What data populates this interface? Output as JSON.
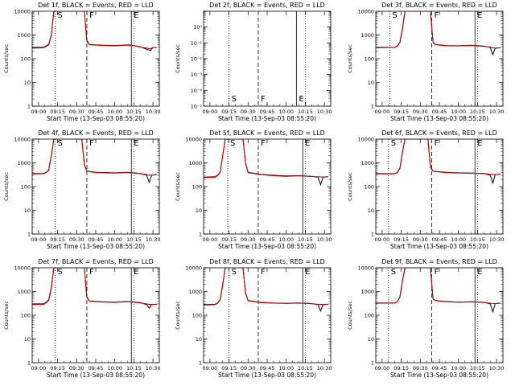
{
  "xlabel": "Start Time (13-Sep-03 08:55:20)",
  "ylabel": "Counts/sec",
  "x_tick_labels": [
    "09:00",
    "09:15",
    "09:30",
    "09:45",
    "10:00",
    "10:15",
    "10:30"
  ],
  "y_tick_labels": [
    "1",
    "10",
    "100",
    "1000",
    "10000"
  ],
  "y_tick_labels_small": [
    "10⁻⁵",
    "10⁻⁴",
    "10⁻³",
    "10⁻²",
    "10⁻¹",
    "10⁰"
  ],
  "colors": {
    "events": "#000000",
    "lld": "#cc0000"
  },
  "chart_data": [
    {
      "type": "line",
      "title": "Det 1f, BLACK = Events, RED = LLD",
      "yscale": "log",
      "ylim": [
        1,
        10000
      ],
      "markers": [
        "S",
        "F",
        "E"
      ],
      "series": [
        {
          "name": "Events",
          "x": [
            "08:55",
            "09:04",
            "09:06",
            "09:08",
            "09:10",
            "09:12",
            "09:14",
            "09:36",
            "09:38",
            "09:40",
            "09:50",
            "10:00",
            "10:10",
            "10:15",
            "10:20",
            "10:25",
            "10:28",
            "10:30",
            "10:33"
          ],
          "values": [
            300,
            300,
            350,
            400,
            1000,
            10000,
            10000,
            10000,
            600,
            400,
            370,
            360,
            380,
            360,
            320,
            250,
            220,
            300,
            290
          ]
        },
        {
          "name": "LLD",
          "x": [
            "08:55",
            "09:04",
            "09:06",
            "09:08",
            "09:10",
            "09:12",
            "09:14",
            "09:36",
            "09:38",
            "09:40",
            "09:50",
            "10:00",
            "10:10",
            "10:15",
            "10:20",
            "10:25",
            "10:28",
            "10:30",
            "10:33"
          ],
          "values": [
            280,
            290,
            330,
            380,
            900,
            10000,
            10000,
            10000,
            550,
            390,
            360,
            350,
            370,
            355,
            310,
            280,
            260,
            300,
            290
          ]
        }
      ]
    },
    {
      "type": "line",
      "title": "Det 2f, BLACK = Events, RED = LLD",
      "yscale": "log",
      "ylim": [
        1e-06,
        1
      ],
      "markers": [
        "S",
        "F",
        "E"
      ],
      "series": []
    },
    {
      "type": "line",
      "title": "Det 3f, BLACK = Events, RED = LLD",
      "yscale": "log",
      "ylim": [
        1,
        10000
      ],
      "markers": [
        "S",
        "F",
        "E"
      ],
      "series": [
        {
          "name": "Events",
          "x": [
            "08:55",
            "09:10",
            "09:12",
            "09:14",
            "09:16",
            "09:18",
            "09:20",
            "09:38",
            "09:40",
            "09:42",
            "09:50",
            "10:00",
            "10:10",
            "10:20",
            "10:25",
            "10:27",
            "10:29",
            "10:33"
          ],
          "values": [
            300,
            300,
            350,
            500,
            2000,
            10000,
            10000,
            10000,
            500,
            400,
            360,
            350,
            370,
            340,
            300,
            150,
            280,
            290
          ]
        },
        {
          "name": "LLD",
          "x": [
            "08:55",
            "09:10",
            "09:12",
            "09:14",
            "09:16",
            "09:18",
            "09:20",
            "09:38",
            "09:40",
            "09:42",
            "09:50",
            "10:00",
            "10:10",
            "10:20",
            "10:25",
            "10:27",
            "10:29",
            "10:33"
          ],
          "values": [
            290,
            300,
            340,
            480,
            1800,
            10000,
            10000,
            10000,
            480,
            390,
            350,
            345,
            360,
            330,
            310,
            290,
            280,
            290
          ]
        }
      ]
    },
    {
      "type": "line",
      "title": "Det 4f, BLACK = Events, RED = LLD",
      "yscale": "log",
      "ylim": [
        1,
        10000
      ],
      "markers": [
        "S",
        "F",
        "E"
      ],
      "series": [
        {
          "name": "Events",
          "x": [
            "08:55",
            "09:04",
            "09:06",
            "09:08",
            "09:10",
            "09:12",
            "09:14",
            "09:34",
            "09:36",
            "09:38",
            "09:45",
            "10:00",
            "10:10",
            "10:20",
            "10:25",
            "10:27",
            "10:29",
            "10:33"
          ],
          "values": [
            350,
            360,
            400,
            500,
            2000,
            10000,
            10000,
            10000,
            900,
            450,
            400,
            380,
            400,
            360,
            300,
            150,
            300,
            320
          ]
        },
        {
          "name": "LLD",
          "x": [
            "08:55",
            "09:04",
            "09:06",
            "09:08",
            "09:10",
            "09:12",
            "09:14",
            "09:34",
            "09:36",
            "09:38",
            "09:45",
            "10:00",
            "10:10",
            "10:20",
            "10:25",
            "10:27",
            "10:29",
            "10:33"
          ],
          "values": [
            340,
            350,
            390,
            480,
            1900,
            10000,
            10000,
            10000,
            850,
            440,
            390,
            370,
            390,
            350,
            320,
            300,
            310,
            320
          ]
        }
      ]
    },
    {
      "type": "line",
      "title": "Det 5f, BLACK = Events, RED = LLD",
      "yscale": "log",
      "ylim": [
        1,
        10000
      ],
      "markers": [
        "S",
        "F",
        "E"
      ],
      "series": [
        {
          "name": "Events",
          "x": [
            "08:55",
            "09:04",
            "09:06",
            "09:08",
            "09:10",
            "09:12",
            "09:14",
            "09:26",
            "09:28",
            "09:30",
            "09:40",
            "09:50",
            "10:00",
            "10:10",
            "10:20",
            "10:25",
            "10:27",
            "10:29",
            "10:33"
          ],
          "values": [
            250,
            260,
            300,
            400,
            2000,
            10000,
            10000,
            10000,
            1000,
            400,
            330,
            300,
            280,
            290,
            270,
            250,
            120,
            250,
            260
          ]
        },
        {
          "name": "LLD",
          "x": [
            "08:55",
            "09:04",
            "09:06",
            "09:08",
            "09:10",
            "09:12",
            "09:14",
            "09:26",
            "09:28",
            "09:30",
            "09:40",
            "09:50",
            "10:00",
            "10:10",
            "10:20",
            "10:25",
            "10:27",
            "10:29",
            "10:33"
          ],
          "values": [
            240,
            250,
            290,
            390,
            1900,
            10000,
            10000,
            10000,
            950,
            390,
            320,
            290,
            270,
            285,
            265,
            260,
            255,
            255,
            260
          ]
        }
      ]
    },
    {
      "type": "line",
      "title": "Det 6f, BLACK = Events, RED = LLD",
      "yscale": "log",
      "ylim": [
        1,
        10000
      ],
      "markers": [
        "S",
        "F",
        "E"
      ],
      "series": [
        {
          "name": "Events",
          "x": [
            "08:55",
            "09:10",
            "09:12",
            "09:14",
            "09:16",
            "09:18",
            "09:20",
            "09:36",
            "09:38",
            "09:40",
            "09:50",
            "10:00",
            "10:10",
            "10:20",
            "10:25",
            "10:27",
            "10:29",
            "10:33"
          ],
          "values": [
            350,
            350,
            400,
            600,
            3000,
            10000,
            10000,
            10000,
            700,
            450,
            400,
            380,
            370,
            360,
            300,
            140,
            320,
            330
          ]
        },
        {
          "name": "LLD",
          "x": [
            "08:55",
            "09:10",
            "09:12",
            "09:14",
            "09:16",
            "09:18",
            "09:20",
            "09:36",
            "09:38",
            "09:40",
            "09:50",
            "10:00",
            "10:10",
            "10:20",
            "10:25",
            "10:27",
            "10:29",
            "10:33"
          ],
          "values": [
            340,
            345,
            390,
            580,
            2800,
            10000,
            10000,
            10000,
            650,
            440,
            390,
            370,
            365,
            355,
            330,
            320,
            320,
            330
          ]
        }
      ]
    },
    {
      "type": "line",
      "title": "Det 7f, BLACK = Events, RED = LLD",
      "yscale": "log",
      "ylim": [
        1,
        10000
      ],
      "markers": [
        "S",
        "F",
        "E"
      ],
      "series": [
        {
          "name": "Events",
          "x": [
            "08:55",
            "09:04",
            "09:06",
            "09:08",
            "09:10",
            "09:12",
            "09:14",
            "09:36",
            "09:38",
            "09:40",
            "09:50",
            "10:00",
            "10:10",
            "10:20",
            "10:25",
            "10:27",
            "10:29",
            "10:33"
          ],
          "values": [
            300,
            300,
            350,
            450,
            1500,
            10000,
            10000,
            10000,
            600,
            400,
            370,
            360,
            380,
            340,
            280,
            200,
            280,
            290
          ]
        },
        {
          "name": "LLD",
          "x": [
            "08:55",
            "09:04",
            "09:06",
            "09:08",
            "09:10",
            "09:12",
            "09:14",
            "09:36",
            "09:38",
            "09:40",
            "09:50",
            "10:00",
            "10:10",
            "10:20",
            "10:25",
            "10:27",
            "10:29",
            "10:33"
          ],
          "values": [
            280,
            290,
            330,
            420,
            1300,
            10000,
            10000,
            10000,
            560,
            390,
            360,
            350,
            370,
            330,
            300,
            290,
            285,
            290
          ]
        }
      ]
    },
    {
      "type": "line",
      "title": "Det 8f, BLACK = Events, RED = LLD",
      "yscale": "log",
      "ylim": [
        1,
        10000
      ],
      "markers": [
        "S",
        "F",
        "E"
      ],
      "series": [
        {
          "name": "Events",
          "x": [
            "08:55",
            "09:04",
            "09:06",
            "09:08",
            "09:10",
            "09:12",
            "09:14",
            "09:26",
            "09:28",
            "09:30",
            "09:40",
            "09:50",
            "10:00",
            "10:10",
            "10:20",
            "10:25",
            "10:27",
            "10:29",
            "10:33"
          ],
          "values": [
            280,
            290,
            330,
            450,
            2000,
            10000,
            10000,
            10000,
            900,
            420,
            350,
            330,
            320,
            330,
            310,
            280,
            150,
            280,
            290
          ]
        },
        {
          "name": "LLD",
          "x": [
            "08:55",
            "09:04",
            "09:06",
            "09:08",
            "09:10",
            "09:12",
            "09:14",
            "09:26",
            "09:28",
            "09:30",
            "09:40",
            "09:50",
            "10:00",
            "10:10",
            "10:20",
            "10:25",
            "10:27",
            "10:29",
            "10:33"
          ],
          "values": [
            270,
            280,
            320,
            430,
            1800,
            10000,
            10000,
            10000,
            850,
            410,
            340,
            325,
            315,
            325,
            305,
            290,
            285,
            285,
            290
          ]
        }
      ]
    },
    {
      "type": "line",
      "title": "Det 9f, BLACK = Events, RED = LLD",
      "yscale": "log",
      "ylim": [
        1,
        10000
      ],
      "markers": [
        "S",
        "F",
        "E"
      ],
      "series": [
        {
          "name": "Events",
          "x": [
            "08:55",
            "09:10",
            "09:12",
            "09:14",
            "09:16",
            "09:18",
            "09:20",
            "09:38",
            "09:40",
            "09:42",
            "09:50",
            "10:00",
            "10:10",
            "10:20",
            "10:25",
            "10:27",
            "10:29",
            "10:33"
          ],
          "values": [
            330,
            330,
            380,
            600,
            3000,
            10000,
            10000,
            10000,
            500,
            420,
            380,
            360,
            370,
            350,
            300,
            140,
            310,
            320
          ]
        },
        {
          "name": "LLD",
          "x": [
            "08:55",
            "09:10",
            "09:12",
            "09:14",
            "09:16",
            "09:18",
            "09:20",
            "09:38",
            "09:40",
            "09:42",
            "09:50",
            "10:00",
            "10:10",
            "10:20",
            "10:25",
            "10:27",
            "10:29",
            "10:33"
          ],
          "values": [
            320,
            325,
            370,
            580,
            2800,
            10000,
            10000,
            10000,
            480,
            410,
            370,
            355,
            365,
            345,
            320,
            310,
            310,
            320
          ]
        }
      ]
    }
  ]
}
